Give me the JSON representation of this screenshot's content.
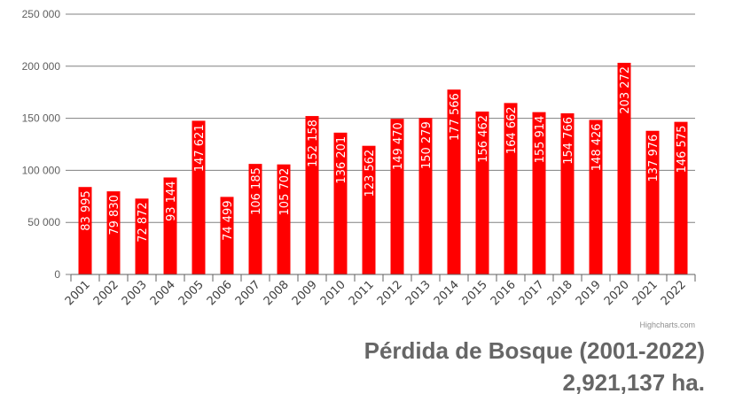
{
  "chart_data": {
    "type": "bar",
    "categories": [
      "2001",
      "2002",
      "2003",
      "2004",
      "2005",
      "2006",
      "2007",
      "2008",
      "2009",
      "2010",
      "2011",
      "2012",
      "2013",
      "2014",
      "2015",
      "2016",
      "2017",
      "2018",
      "2019",
      "2020",
      "2021",
      "2022"
    ],
    "values": [
      83995,
      79830,
      72872,
      93144,
      147621,
      74499,
      106185,
      105702,
      152158,
      136201,
      123562,
      149470,
      150279,
      177566,
      156462,
      164662,
      155914,
      154766,
      148426,
      203272,
      137976,
      146575
    ],
    "data_labels": [
      "83 995",
      "79 830",
      "72 872",
      "93 144",
      "147 621",
      "74 499",
      "106 185",
      "105 702",
      "152 158",
      "136 201",
      "123 562",
      "149 470",
      "150 279",
      "177 566",
      "156 462",
      "164 662",
      "155 914",
      "154 766",
      "148 426",
      "203 272",
      "137 976",
      "146 575"
    ],
    "yticks": [
      0,
      50000,
      100000,
      150000,
      200000,
      250000
    ],
    "ytick_labels": [
      "0",
      "50 000",
      "100 000",
      "150 000",
      "200 000",
      "250 000"
    ],
    "ylim": [
      0,
      250000
    ],
    "grid": true,
    "bar_color": "#ff0000",
    "title": "Pérdida de Bosque (2001-2022)",
    "subtitle": "2,921,137 ha.",
    "credits": "Highcharts.com"
  }
}
